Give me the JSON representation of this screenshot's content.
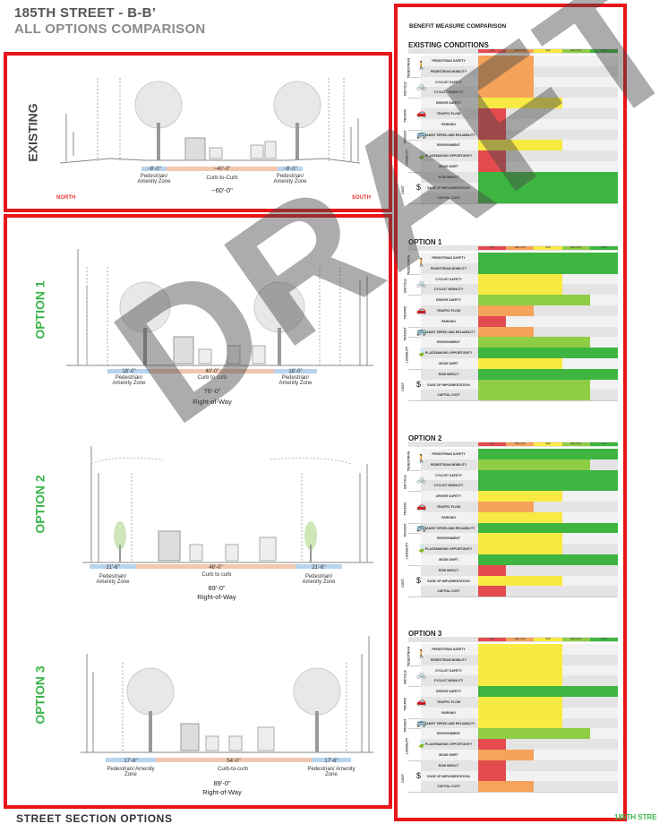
{
  "header": {
    "title": "185TH STREET - B-B’",
    "subtitle": "ALL OPTIONS COMPARISON"
  },
  "footer": {
    "left": "STREET SECTION OPTIONS",
    "right": "185TH STRE"
  },
  "watermark": "DRAFT",
  "colors": {
    "red": "#e34b4f",
    "orange": "#f5a25a",
    "yellow": "#f8ea42",
    "light_green": "#8fcd45",
    "green": "#3db540",
    "frame": "#e8151b",
    "option_green": "#39b54a"
  },
  "sections": {
    "existing": {
      "label": "EXISTING",
      "north": "NORTH",
      "south": "SOUTH",
      "dims": [
        "~8'-0\"",
        "~40'-0\"",
        "~8'-0\""
      ],
      "zones": [
        "Pedestrian/ Amenity Zone",
        "Curb-to-Curb",
        "Pedestrian/ Amenity Zone"
      ],
      "total": "~60'-0\""
    },
    "option1": {
      "label": "OPTION 1",
      "dims": [
        "18'-0\"",
        "40'-0\"",
        "18'-0\""
      ],
      "zones": [
        "Pedestrian/ Amenity Zone",
        "Curb to curb",
        "Pedestrian/ Amenity Zone"
      ],
      "total": "76'-0\"",
      "row": "Right-of-Way"
    },
    "option2": {
      "label": "OPTION 2",
      "dims": [
        "21'-6\"",
        "46'-0\"",
        "21'-6\""
      ],
      "zones": [
        "Pedestrian/ Amenity Zone",
        "Curb to curb",
        "Pedestrian/ Amenity Zone"
      ],
      "total": "89'-0\"",
      "row": "Right-of-Way"
    },
    "option3": {
      "label": "OPTION 3",
      "dims": [
        "17'-6\"",
        "54'-0\"",
        "17'-6\""
      ],
      "zones": [
        "Pedestrian/ Amenity Zone",
        "Curb-to-curb",
        "Pedestrian/ Amenity Zone"
      ],
      "total": "89'-0\"",
      "row": "Right-of-Way"
    }
  },
  "matrix": {
    "title": "BENEFIT MEASURE COMPARISON",
    "scale": [
      "LOW",
      "MED-LOW",
      "MED",
      "MED-HIGH",
      "HIGH"
    ],
    "categories": [
      {
        "name": "PEDESTRIAN",
        "icon": "walk-icon",
        "glyph": "🚶",
        "rows": [
          "PEDESTRIAN SAFETY",
          "PEDESTRIAN MOBILITY"
        ]
      },
      {
        "name": "BICYCLE",
        "icon": "bike-icon",
        "glyph": "🚲",
        "rows": [
          "CYCLIST SAFETY",
          "CYCLIST MOBILITY"
        ]
      },
      {
        "name": "TRAFFIC",
        "icon": "car-icon",
        "glyph": "🚗",
        "rows": [
          "DRIVER SAFETY",
          "TRAFFIC FLOW",
          "PARKING"
        ]
      },
      {
        "name": "TRANSIT",
        "icon": "bus-icon",
        "glyph": "🚌",
        "rows": [
          "TRANSIT SPEED AND RELIABILITY"
        ]
      },
      {
        "name": "LIVABILITY",
        "icon": "leaf-icon",
        "glyph": "🍃",
        "rows": [
          "ENVIRONMENT",
          "PLACEMAKING OPPORTUNITY",
          "MODE SHIFT"
        ]
      },
      {
        "name": "COST",
        "icon": "dollar-icon",
        "glyph": "$",
        "rows": [
          "ROW IMPACT",
          "EASE OF IMPLEMENTATION",
          "CAPITAL COST"
        ]
      }
    ],
    "options": [
      {
        "title": "EXISTING CONDITIONS",
        "levels": [
          2,
          2,
          2,
          2,
          3,
          1,
          1,
          1,
          3,
          1,
          1,
          5,
          5,
          5
        ]
      },
      {
        "title": "OPTION 1",
        "levels": [
          5,
          5,
          3,
          3,
          4,
          2,
          1,
          2,
          4,
          5,
          3,
          5,
          4,
          4
        ]
      },
      {
        "title": "OPTION 2",
        "levels": [
          5,
          4,
          5,
          5,
          3,
          2,
          3,
          5,
          3,
          3,
          5,
          1,
          3,
          1
        ]
      },
      {
        "title": "OPTION 3",
        "levels": [
          3,
          3,
          3,
          3,
          5,
          3,
          3,
          3,
          4,
          1,
          2,
          1,
          1,
          2
        ]
      }
    ]
  }
}
